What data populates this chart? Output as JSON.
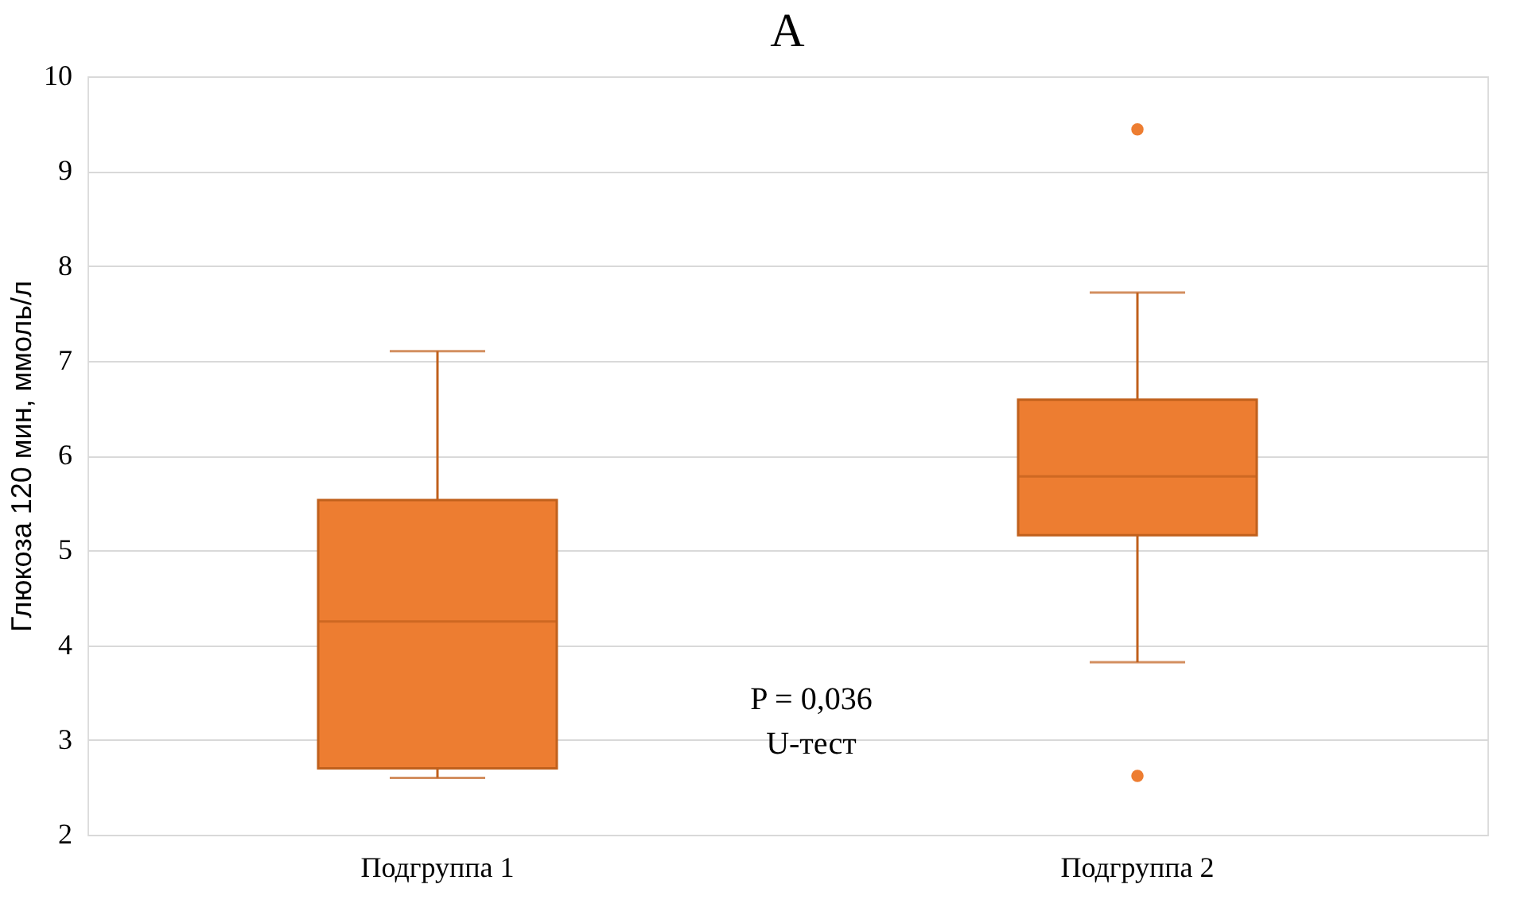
{
  "chart_data": {
    "type": "box",
    "title": "А",
    "ylabel": "Глюкоза 120 мин, ммоль/л",
    "categories": [
      "Подгруппа 1",
      "Подгруппа 2"
    ],
    "boxes": [
      {
        "low": 2.6,
        "q1": 2.7,
        "median": 4.25,
        "q3": 5.53,
        "high": 7.1
      },
      {
        "low": 3.82,
        "q1": 5.16,
        "median": 5.78,
        "q3": 6.59,
        "high": 7.72,
        "outliers": [
          9.44,
          2.62
        ]
      }
    ],
    "color": "#ed7d31",
    "ylim": [
      2,
      10
    ],
    "yticks": [
      2,
      3,
      4,
      5,
      6,
      7,
      8,
      9,
      10
    ],
    "grid": "y",
    "annotations": [
      "P = 0,036",
      "U-тест"
    ]
  }
}
